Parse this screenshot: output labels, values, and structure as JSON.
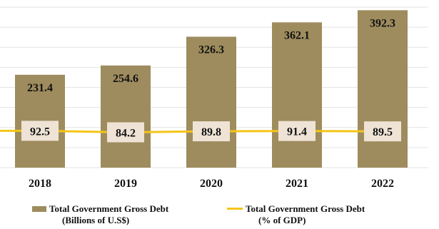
{
  "chart_data": {
    "type": "bar",
    "categories": [
      "2018",
      "2019",
      "2020",
      "2021",
      "2022"
    ],
    "series": [
      {
        "name": "Total Government Gross Debt (Billions of U.S$)",
        "type": "bar",
        "values": [
          231.4,
          254.6,
          326.3,
          362.1,
          392.3
        ],
        "color": "#9e8c5e"
      },
      {
        "name": "Total Government Gross Debt (% of GDP)",
        "type": "line",
        "values": [
          92.5,
          84.2,
          89.8,
          91.4,
          89.5
        ],
        "color": "#f5c518"
      }
    ],
    "title": "",
    "xlabel": "",
    "ylabel": "",
    "ylim": [
      0,
      400
    ],
    "grid": true,
    "legend_position": "bottom"
  },
  "legend": {
    "bar_line1": "Total Government Gross Debt",
    "bar_line2": "(Billions of U.S$)",
    "line_line1": "Total Government Gross Debt",
    "line_line2": "(% of GDP)"
  },
  "colors": {
    "bar": "#9e8c5e",
    "line": "#f5c518",
    "label_box": "#efe3d6",
    "grid": "#e3e3e3"
  }
}
